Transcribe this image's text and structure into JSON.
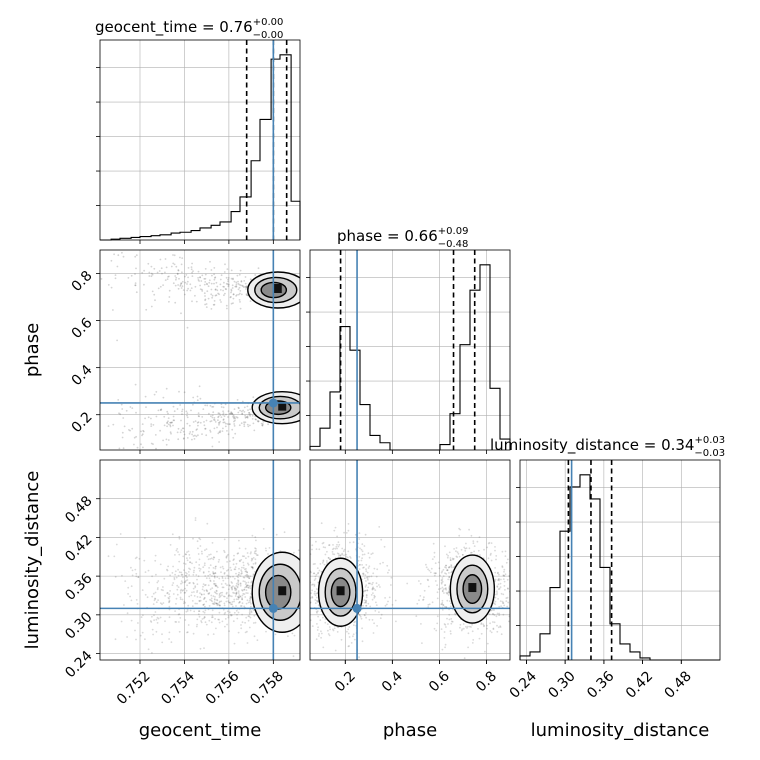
{
  "chart_data": {
    "type": "corner",
    "parameters": [
      {
        "name": "geocent_time",
        "range": [
          0.7502,
          0.7592
        ],
        "ticks": [
          0.752,
          0.754,
          0.756,
          0.758
        ],
        "tick_labels": [
          "0.752",
          "0.754",
          "0.756",
          "0.758"
        ],
        "truth": 0.758,
        "quantiles": [
          0.7568,
          0.758,
          0.7586
        ],
        "title_value": "0.76",
        "title_plus": "+0.00",
        "title_minus": "−0.00"
      },
      {
        "name": "phase",
        "range": [
          0.05,
          0.9
        ],
        "ticks": [
          0.2,
          0.4,
          0.6,
          0.8
        ],
        "tick_labels": [
          "0.2",
          "0.4",
          "0.6",
          "0.8"
        ],
        "truth": 0.25,
        "quantiles": [
          0.18,
          0.66,
          0.75
        ],
        "title_value": "0.66",
        "title_plus": "+0.09",
        "title_minus": "−0.48"
      },
      {
        "name": "luminosity_distance",
        "range": [
          0.23,
          0.54
        ],
        "ticks": [
          0.24,
          0.3,
          0.36,
          0.42,
          0.48
        ],
        "tick_labels": [
          "0.24",
          "0.30",
          "0.36",
          "0.42",
          "0.48"
        ],
        "truth": 0.31,
        "quantiles": [
          0.305,
          0.34,
          0.372
        ],
        "title_value": "0.34",
        "title_plus": "+0.03",
        "title_minus": "−0.03"
      }
    ],
    "histograms": [
      {
        "bin_edges": [
          0.7502,
          0.7507,
          0.7511,
          0.7516,
          0.752,
          0.7525,
          0.7529,
          0.7534,
          0.7538,
          0.7543,
          0.7547,
          0.7552,
          0.7556,
          0.7561,
          0.7565,
          0.757,
          0.7574,
          0.7579,
          0.7583,
          0.7588,
          0.7592
        ],
        "counts": [
          0,
          1,
          2,
          3,
          4,
          5,
          6,
          8,
          9,
          11,
          14,
          17,
          21,
          33,
          50,
          92,
          140,
          210,
          215,
          45
        ]
      },
      {
        "bin_edges": [
          0.05,
          0.0925,
          0.135,
          0.1775,
          0.22,
          0.2625,
          0.305,
          0.3475,
          0.39,
          0.4325,
          0.475,
          0.5175,
          0.56,
          0.6025,
          0.645,
          0.6875,
          0.73,
          0.7725,
          0.815,
          0.8575,
          0.9
        ],
        "counts": [
          2,
          12,
          32,
          68,
          55,
          25,
          8,
          4,
          0,
          0,
          0,
          0,
          0,
          3,
          20,
          58,
          88,
          102,
          34,
          6
        ]
      },
      {
        "bin_edges": [
          0.23,
          0.2455,
          0.261,
          0.2765,
          0.292,
          0.3075,
          0.323,
          0.3385,
          0.354,
          0.3695,
          0.385,
          0.4005,
          0.416,
          0.4315,
          0.447,
          0.4625,
          0.478,
          0.4935,
          0.509,
          0.5245,
          0.54
        ],
        "counts": [
          2,
          4,
          13,
          36,
          64,
          86,
          92,
          80,
          46,
          18,
          8,
          4,
          1,
          0,
          0,
          0,
          0,
          0,
          0,
          0
        ]
      }
    ],
    "pairs": [
      {
        "x": "geocent_time",
        "y": "phase",
        "peaks": [
          [
            0.7582,
            0.73
          ],
          [
            0.7584,
            0.23
          ]
        ]
      },
      {
        "x": "geocent_time",
        "y": "luminosity_distance",
        "peaks": [
          [
            0.7584,
            0.335
          ]
        ]
      },
      {
        "x": "phase",
        "y": "luminosity_distance",
        "peaks": [
          [
            0.18,
            0.335
          ],
          [
            0.74,
            0.34
          ]
        ]
      }
    ]
  }
}
